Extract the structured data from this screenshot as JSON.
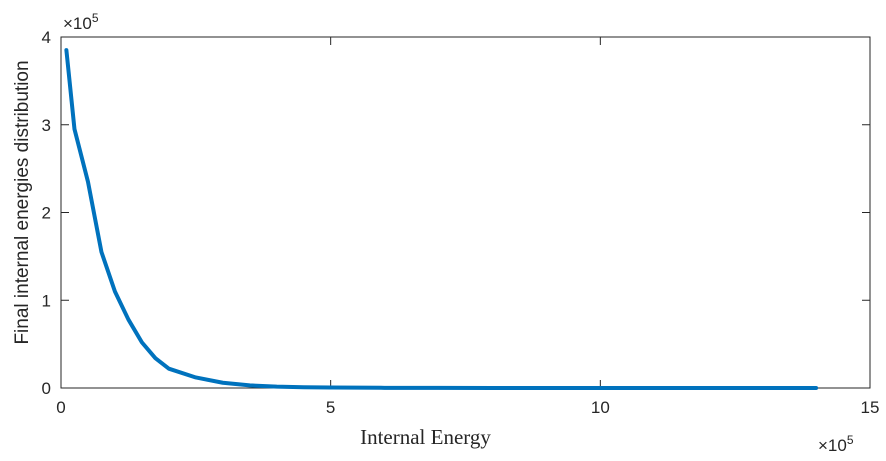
{
  "chart_data": {
    "type": "line",
    "title": "",
    "xlabel": "Internal Energy",
    "ylabel": "Final internal energies distribution",
    "xlim": [
      0,
      15
    ],
    "ylim": [
      0,
      4
    ],
    "x_multiplier": "×10",
    "x_multiplier_exp": "5",
    "y_multiplier": "×10",
    "y_multiplier_exp": "5",
    "x_ticks": [
      "0",
      "5",
      "10",
      "15"
    ],
    "y_ticks": [
      "0",
      "1",
      "2",
      "3",
      "4"
    ],
    "grid": false,
    "line_color": "#0072BD",
    "series": [
      {
        "x": [
          0.1,
          0.25,
          0.5,
          0.75,
          1.0,
          1.25,
          1.5,
          1.75,
          2.0,
          2.5,
          3.0,
          3.5,
          4.0,
          4.5,
          5.0,
          6.0,
          7.0,
          8.0,
          9.0,
          10.0,
          11.0,
          12.0,
          13.0,
          14.0
        ],
        "y": [
          3.85,
          2.95,
          2.35,
          1.55,
          1.1,
          0.78,
          0.52,
          0.34,
          0.22,
          0.12,
          0.06,
          0.03,
          0.015,
          0.008,
          0.005,
          0.002,
          0.001,
          0,
          0,
          0,
          0,
          0,
          0,
          0
        ]
      }
    ]
  }
}
